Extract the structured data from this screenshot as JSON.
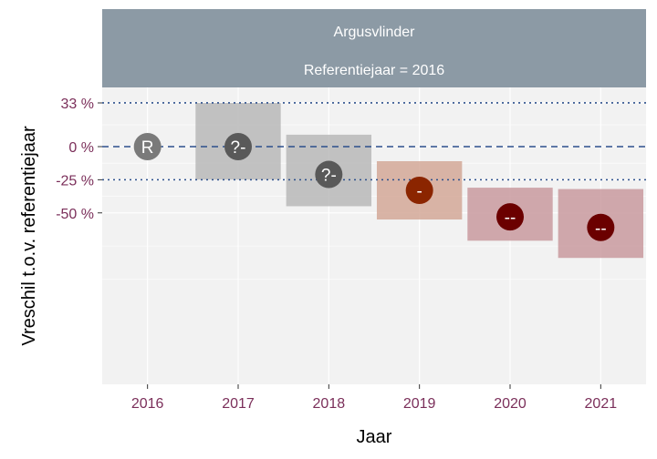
{
  "strip": {
    "line1": "Argusvlinder",
    "line2": "Referentiejaar = 2016"
  },
  "chart_data": {
    "type": "scatter",
    "xlabel": "Jaar",
    "ylabel": "Vreschil t.o.v. referentiejaar",
    "categories": [
      "2016",
      "2017",
      "2018",
      "2019",
      "2020",
      "2021"
    ],
    "y_ticks": [
      {
        "label": "33 %",
        "value": 33
      },
      {
        "label": "0 %",
        "value": 0
      },
      {
        "label": "-25 %",
        "value": -25
      },
      {
        "label": "-50 %",
        "value": -50
      }
    ],
    "reference_lines": [
      {
        "value": 33,
        "style": "dotted"
      },
      {
        "value": 0,
        "style": "dashed"
      },
      {
        "value": -25,
        "style": "dotted"
      }
    ],
    "ylim": [
      -85,
      38
    ],
    "points": [
      {
        "year": "2016",
        "value": 0,
        "low": null,
        "high": null,
        "label": "R",
        "color": "#7a7a7a",
        "band": null
      },
      {
        "year": "2017",
        "value": 0,
        "low": -25,
        "high": 33,
        "label": "?-",
        "color": "#595959",
        "band": "#b8b8b8"
      },
      {
        "year": "2018",
        "value": -21,
        "low": -45,
        "high": 9,
        "label": "?-",
        "color": "#595959",
        "band": "#b8b8b8"
      },
      {
        "year": "2019",
        "value": -33,
        "low": -55,
        "high": -11,
        "label": "-",
        "color": "#8b2500",
        "band": "#d4a898"
      },
      {
        "year": "2020",
        "value": -53,
        "low": -71,
        "high": -31,
        "label": "--",
        "color": "#6b0000",
        "band": "#c99a9f"
      },
      {
        "year": "2021",
        "value": -61,
        "low": -84,
        "high": -32,
        "label": "--",
        "color": "#6b0000",
        "band": "#c99a9f"
      }
    ],
    "colors": {
      "panel": "#f2f2f2",
      "grid": "#ffffff",
      "strip": "#8c9aa5",
      "ref_line": "#2c4f8c",
      "tick_label": "#7b2f5a"
    }
  }
}
